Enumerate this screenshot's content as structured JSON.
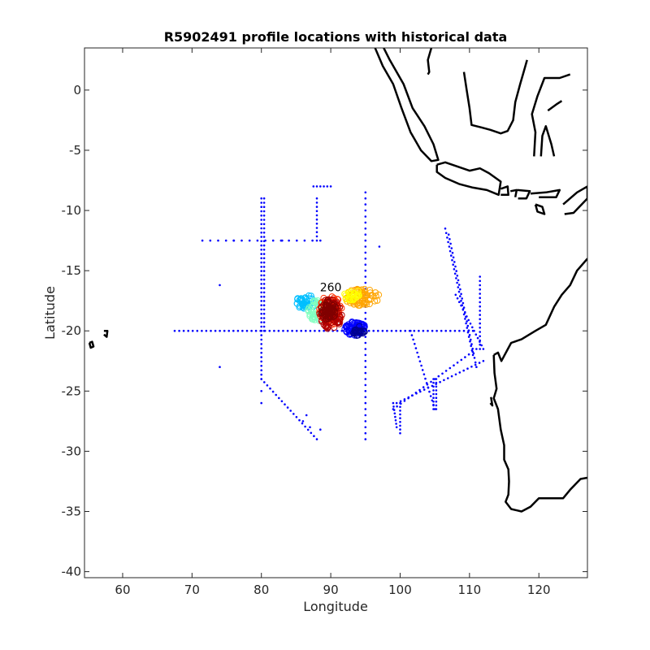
{
  "chart_data": {
    "type": "scatter",
    "title": "R5902491 profile locations with historical data",
    "xlabel": "Longitude",
    "ylabel": "Latitude",
    "xlim": [
      54.5,
      127
    ],
    "ylim": [
      -40.5,
      3.5
    ],
    "xticks": [
      60,
      70,
      80,
      90,
      100,
      110,
      120
    ],
    "yticks": [
      0,
      -5,
      -10,
      -15,
      -20,
      -25,
      -30,
      -35,
      -40
    ],
    "grid": false,
    "legend": "none",
    "annotations": [
      {
        "text": "260",
        "x": 90,
        "y": -16.7
      }
    ],
    "colors": {
      "historical": "#0000ff",
      "coast": "#000000",
      "profile_colormap": [
        "#00008f",
        "#0000ff",
        "#00bfff",
        "#80ffbf",
        "#ffff00",
        "#ffa500",
        "#ff3000",
        "#b00000",
        "#800000"
      ]
    },
    "series": [
      {
        "role": "historical",
        "marker": "dot",
        "lines": [
          {
            "x": [
              67.5,
              110.5
            ],
            "y": [
              -20,
              -20
            ],
            "step": 0.65
          },
          {
            "x": [
              80,
              80
            ],
            "y": [
              -9,
              -20
            ],
            "step": 0.35
          },
          {
            "x": [
              80.4,
              80.4
            ],
            "y": [
              -9,
              -20
            ],
            "step": 0.35
          },
          {
            "x": [
              80,
              80
            ],
            "y": [
              -20,
              -24
            ],
            "step": 0.35
          },
          {
            "x": [
              80,
              88
            ],
            "y": [
              -24,
              -29
            ],
            "step": 0.5
          },
          {
            "x": [
              95,
              95
            ],
            "y": [
              -8.5,
              -29
            ],
            "step": 0.5
          },
          {
            "x": [
              71.5,
              88.5
            ],
            "y": [
              -12.5,
              -12.5
            ],
            "step": 1.1
          },
          {
            "x": [
              88,
              88
            ],
            "y": [
              -9,
              -12.5
            ],
            "step": 0.35
          },
          {
            "x": [
              87.5,
              90
            ],
            "y": [
              -8,
              -8
            ],
            "step": 0.5
          },
          {
            "x": [
              106.5,
              110.5
            ],
            "y": [
              -11.5,
              -22
            ],
            "step": 0.4
          },
          {
            "x": [
              107,
              111
            ],
            "y": [
              -12,
              -23
            ],
            "step": 0.4
          },
          {
            "x": [
              108,
              112
            ],
            "y": [
              -17,
              -21.5
            ],
            "step": 0.4
          },
          {
            "x": [
              111.5,
              111.5
            ],
            "y": [
              -15.5,
              -21.5
            ],
            "step": 0.35
          },
          {
            "x": [
              101.5,
              105
            ],
            "y": [
              -20,
              -26.5
            ],
            "step": 0.4
          },
          {
            "x": [
              99,
              111
            ],
            "y": [
              -26.5,
              -21.5
            ],
            "step": 0.6
          },
          {
            "x": [
              99.5,
              112
            ],
            "y": [
              -26,
              -22.5
            ],
            "step": 0.6
          },
          {
            "x": [
              99,
              99.5
            ],
            "y": [
              -26,
              -28
            ],
            "step": 0.3
          },
          {
            "x": [
              100,
              100
            ],
            "y": [
              -26,
              -28.5
            ],
            "step": 0.3
          },
          {
            "x": [
              104.8,
              104.8
            ],
            "y": [
              -24,
              -26.5
            ],
            "step": 0.3
          },
          {
            "x": [
              105.2,
              105.2
            ],
            "y": [
              -24,
              -26.5
            ],
            "step": 0.3
          }
        ],
        "points": [
          {
            "x": 74,
            "y": -16.2
          },
          {
            "x": 74,
            "y": -23
          },
          {
            "x": 97,
            "y": -13
          },
          {
            "x": 80,
            "y": -25
          },
          {
            "x": 80,
            "y": -26
          },
          {
            "x": 86,
            "y": -27.5
          },
          {
            "x": 86.5,
            "y": -27
          },
          {
            "x": 87,
            "y": -28
          },
          {
            "x": 88.5,
            "y": -28.2
          },
          {
            "x": 76,
            "y": -12.5
          },
          {
            "x": 83,
            "y": -12.5
          }
        ]
      },
      {
        "role": "profiles",
        "marker": "open-circle",
        "clusters": [
          {
            "color_index": 2,
            "cx": 86.5,
            "cy": -17.6,
            "rx": 1.5,
            "ry": 0.6,
            "n": 40
          },
          {
            "color_index": 3,
            "cx": 88.0,
            "cy": -18.3,
            "rx": 1.3,
            "ry": 0.9,
            "n": 40
          },
          {
            "color_index": 5,
            "cx": 94.5,
            "cy": -17.2,
            "rx": 2.5,
            "ry": 0.7,
            "n": 70
          },
          {
            "color_index": 4,
            "cx": 93.0,
            "cy": -17.0,
            "rx": 1.2,
            "ry": 0.5,
            "n": 25
          },
          {
            "color_index": 6,
            "cx": 90.0,
            "cy": -18.3,
            "rx": 1.7,
            "ry": 1.3,
            "n": 70
          },
          {
            "color_index": 7,
            "cx": 90.0,
            "cy": -18.6,
            "rx": 1.6,
            "ry": 1.3,
            "n": 80
          },
          {
            "color_index": 8,
            "cx": 89.7,
            "cy": -18.3,
            "rx": 1.1,
            "ry": 0.9,
            "n": 50
          },
          {
            "color_index": 1,
            "cx": 93.5,
            "cy": -19.8,
            "rx": 1.6,
            "ry": 0.6,
            "n": 70
          },
          {
            "color_index": 0,
            "cx": 94.0,
            "cy": -20.0,
            "rx": 0.9,
            "ry": 0.4,
            "n": 20
          }
        ]
      },
      {
        "role": "coastline",
        "polylines": [
          [
            [
              95.3,
              5.8
            ],
            [
              96.5,
              4.8
            ],
            [
              98.5,
              2.5
            ],
            [
              100.5,
              0.5
            ],
            [
              101.8,
              -1.5
            ],
            [
              103.5,
              -3.0
            ],
            [
              104.8,
              -4.5
            ],
            [
              105.5,
              -5.8
            ],
            [
              104.5,
              -5.9
            ],
            [
              103,
              -5.0
            ],
            [
              101.5,
              -3.5
            ],
            [
              100.2,
              -1.5
            ],
            [
              99,
              0.5
            ],
            [
              97.5,
              2.0
            ],
            [
              95.8,
              4.3
            ],
            [
              95.3,
              5.8
            ]
          ],
          [
            [
              104.5,
              3.5
            ],
            [
              104.0,
              2.5
            ],
            [
              104.2,
              1.5
            ],
            [
              104.0,
              1.3
            ]
          ],
          [
            [
              105.3,
              -6.2
            ],
            [
              106.5,
              -6.0
            ],
            [
              108,
              -6.3
            ],
            [
              110,
              -6.7
            ],
            [
              111.5,
              -6.5
            ],
            [
              112.8,
              -6.9
            ],
            [
              114.5,
              -7.6
            ],
            [
              114.2,
              -8.7
            ],
            [
              112.5,
              -8.3
            ],
            [
              110.5,
              -8.1
            ],
            [
              108.5,
              -7.8
            ],
            [
              106.5,
              -7.3
            ],
            [
              105.3,
              -6.8
            ],
            [
              105.3,
              -6.2
            ]
          ],
          [
            [
              114.5,
              -8.2
            ],
            [
              115.5,
              -8.0
            ],
            [
              115.6,
              -8.7
            ],
            [
              114.5,
              -8.7
            ]
          ],
          [
            [
              115.9,
              -8.4
            ],
            [
              116.8,
              -8.3
            ],
            [
              116.6,
              -8.9
            ]
          ],
          [
            [
              116.9,
              -8.3
            ],
            [
              118.7,
              -8.4
            ],
            [
              118.2,
              -9.0
            ],
            [
              117,
              -9.0
            ]
          ],
          [
            [
              118.8,
              -8.6
            ],
            [
              121,
              -8.5
            ],
            [
              123,
              -8.3
            ],
            [
              122.5,
              -8.9
            ],
            [
              120,
              -8.9
            ]
          ],
          [
            [
              119.5,
              -9.5
            ],
            [
              120.5,
              -9.7
            ],
            [
              120.8,
              -10.3
            ],
            [
              119.8,
              -10.1
            ],
            [
              119.5,
              -9.5
            ]
          ],
          [
            [
              123.5,
              -9.5
            ],
            [
              125.5,
              -8.5
            ],
            [
              127,
              -8.0
            ],
            [
              127,
              -9.0
            ],
            [
              125,
              -10.2
            ],
            [
              123.7,
              -10.3
            ]
          ],
          [
            [
              109.2,
              1.5
            ],
            [
              109.6,
              0.0
            ],
            [
              110,
              -1.5
            ],
            [
              110.3,
              -2.9
            ],
            [
              111.7,
              -3.1
            ],
            [
              113,
              -3.3
            ],
            [
              114.5,
              -3.6
            ],
            [
              115.5,
              -3.4
            ],
            [
              116.3,
              -2.5
            ],
            [
              116.6,
              -1.0
            ],
            [
              117.3,
              0.5
            ],
            [
              117.8,
              1.5
            ],
            [
              118.3,
              2.5
            ]
          ],
          [
            [
              119.3,
              -5.5
            ],
            [
              119.5,
              -3.5
            ],
            [
              119.0,
              -2.0
            ],
            [
              119.8,
              -0.5
            ],
            [
              120.8,
              1.0
            ],
            [
              123,
              1.0
            ],
            [
              124.5,
              1.3
            ]
          ],
          [
            [
              120.3,
              -5.5
            ],
            [
              120.5,
              -3.8
            ],
            [
              121.0,
              -3.0
            ],
            [
              121.8,
              -4.5
            ],
            [
              122.2,
              -5.5
            ]
          ],
          [
            [
              121.3,
              -1.7
            ],
            [
              122.5,
              -1.2
            ],
            [
              123.3,
              -0.9
            ]
          ],
          [
            [
              113.5,
              -22.0
            ],
            [
              114.1,
              -21.8
            ],
            [
              114.6,
              -22.5
            ],
            [
              116,
              -21.0
            ],
            [
              117.5,
              -20.7
            ],
            [
              119.5,
              -20.0
            ],
            [
              121,
              -19.5
            ],
            [
              122.2,
              -18.0
            ],
            [
              123.3,
              -17.0
            ],
            [
              124.5,
              -16.2
            ],
            [
              125.5,
              -15.0
            ],
            [
              127,
              -14.0
            ]
          ],
          [
            [
              113.5,
              -22.0
            ],
            [
              113.6,
              -23.5
            ],
            [
              113.9,
              -24.8
            ],
            [
              113.5,
              -25.6
            ],
            [
              114.1,
              -26.5
            ],
            [
              114.5,
              -28.2
            ],
            [
              115.0,
              -29.5
            ],
            [
              115.0,
              -30.7
            ],
            [
              115.6,
              -31.5
            ],
            [
              115.7,
              -32.5
            ],
            [
              115.6,
              -33.6
            ],
            [
              115.2,
              -34.2
            ],
            [
              116.0,
              -34.8
            ],
            [
              117.5,
              -35.0
            ],
            [
              118.8,
              -34.6
            ],
            [
              120,
              -33.9
            ],
            [
              122,
              -33.9
            ],
            [
              123.5,
              -33.9
            ],
            [
              124.5,
              -33.2
            ],
            [
              126,
              -32.3
            ],
            [
              127,
              -32.2
            ]
          ],
          [
            [
              113.1,
              -25.5
            ],
            [
              113.3,
              -26.2
            ],
            [
              113.0,
              -26.0
            ]
          ],
          [
            [
              55.2,
              -21.0
            ],
            [
              55.6,
              -20.9
            ],
            [
              55.8,
              -21.3
            ],
            [
              55.4,
              -21.4
            ],
            [
              55.2,
              -21.0
            ]
          ],
          [
            [
              57.3,
              -20.0
            ],
            [
              57.8,
              -20.0
            ],
            [
              57.7,
              -20.5
            ],
            [
              57.3,
              -20.3
            ]
          ]
        ]
      }
    ]
  }
}
